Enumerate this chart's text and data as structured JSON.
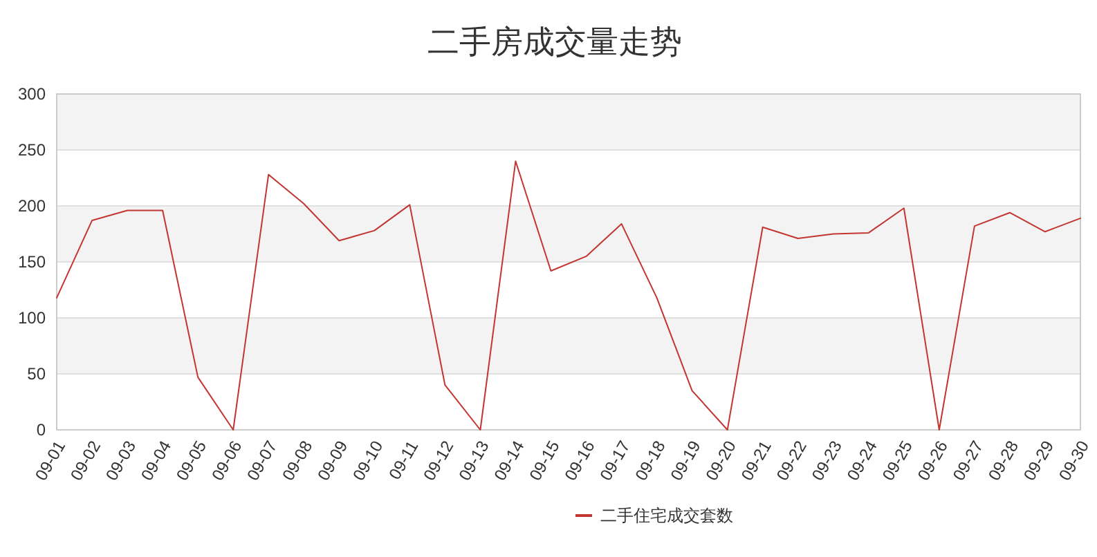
{
  "chart_data": {
    "type": "line",
    "title": "二手房成交量走势",
    "categories": [
      "09-01",
      "09-02",
      "09-03",
      "09-04",
      "09-05",
      "09-06",
      "09-07",
      "09-08",
      "09-09",
      "09-10",
      "09-11",
      "09-12",
      "09-13",
      "09-14",
      "09-15",
      "09-16",
      "09-17",
      "09-18",
      "09-19",
      "09-20",
      "09-21",
      "09-22",
      "09-23",
      "09-24",
      "09-25",
      "09-26",
      "09-27",
      "09-28",
      "09-29",
      "09-30"
    ],
    "series": [
      {
        "name": "二手住宅成交套数",
        "color": "#c23531",
        "values": [
          118,
          187,
          196,
          196,
          47,
          0,
          228,
          202,
          169,
          178,
          201,
          40,
          0,
          240,
          142,
          155,
          184,
          118,
          35,
          0,
          181,
          171,
          175,
          176,
          198,
          0,
          182,
          194,
          177,
          189
        ]
      }
    ],
    "ylim": [
      0,
      300
    ],
    "yticks": [
      0,
      50,
      100,
      150,
      200,
      250,
      300
    ],
    "grid": "y",
    "legend": "bottom",
    "bands": [
      {
        "axis": "y",
        "from": 50,
        "to": 100,
        "color": "#f3f3f3"
      },
      {
        "axis": "y",
        "from": 150,
        "to": 200,
        "color": "#f3f3f3"
      },
      {
        "axis": "y",
        "from": 250,
        "to": 300,
        "color": "#f3f3f3"
      }
    ]
  }
}
